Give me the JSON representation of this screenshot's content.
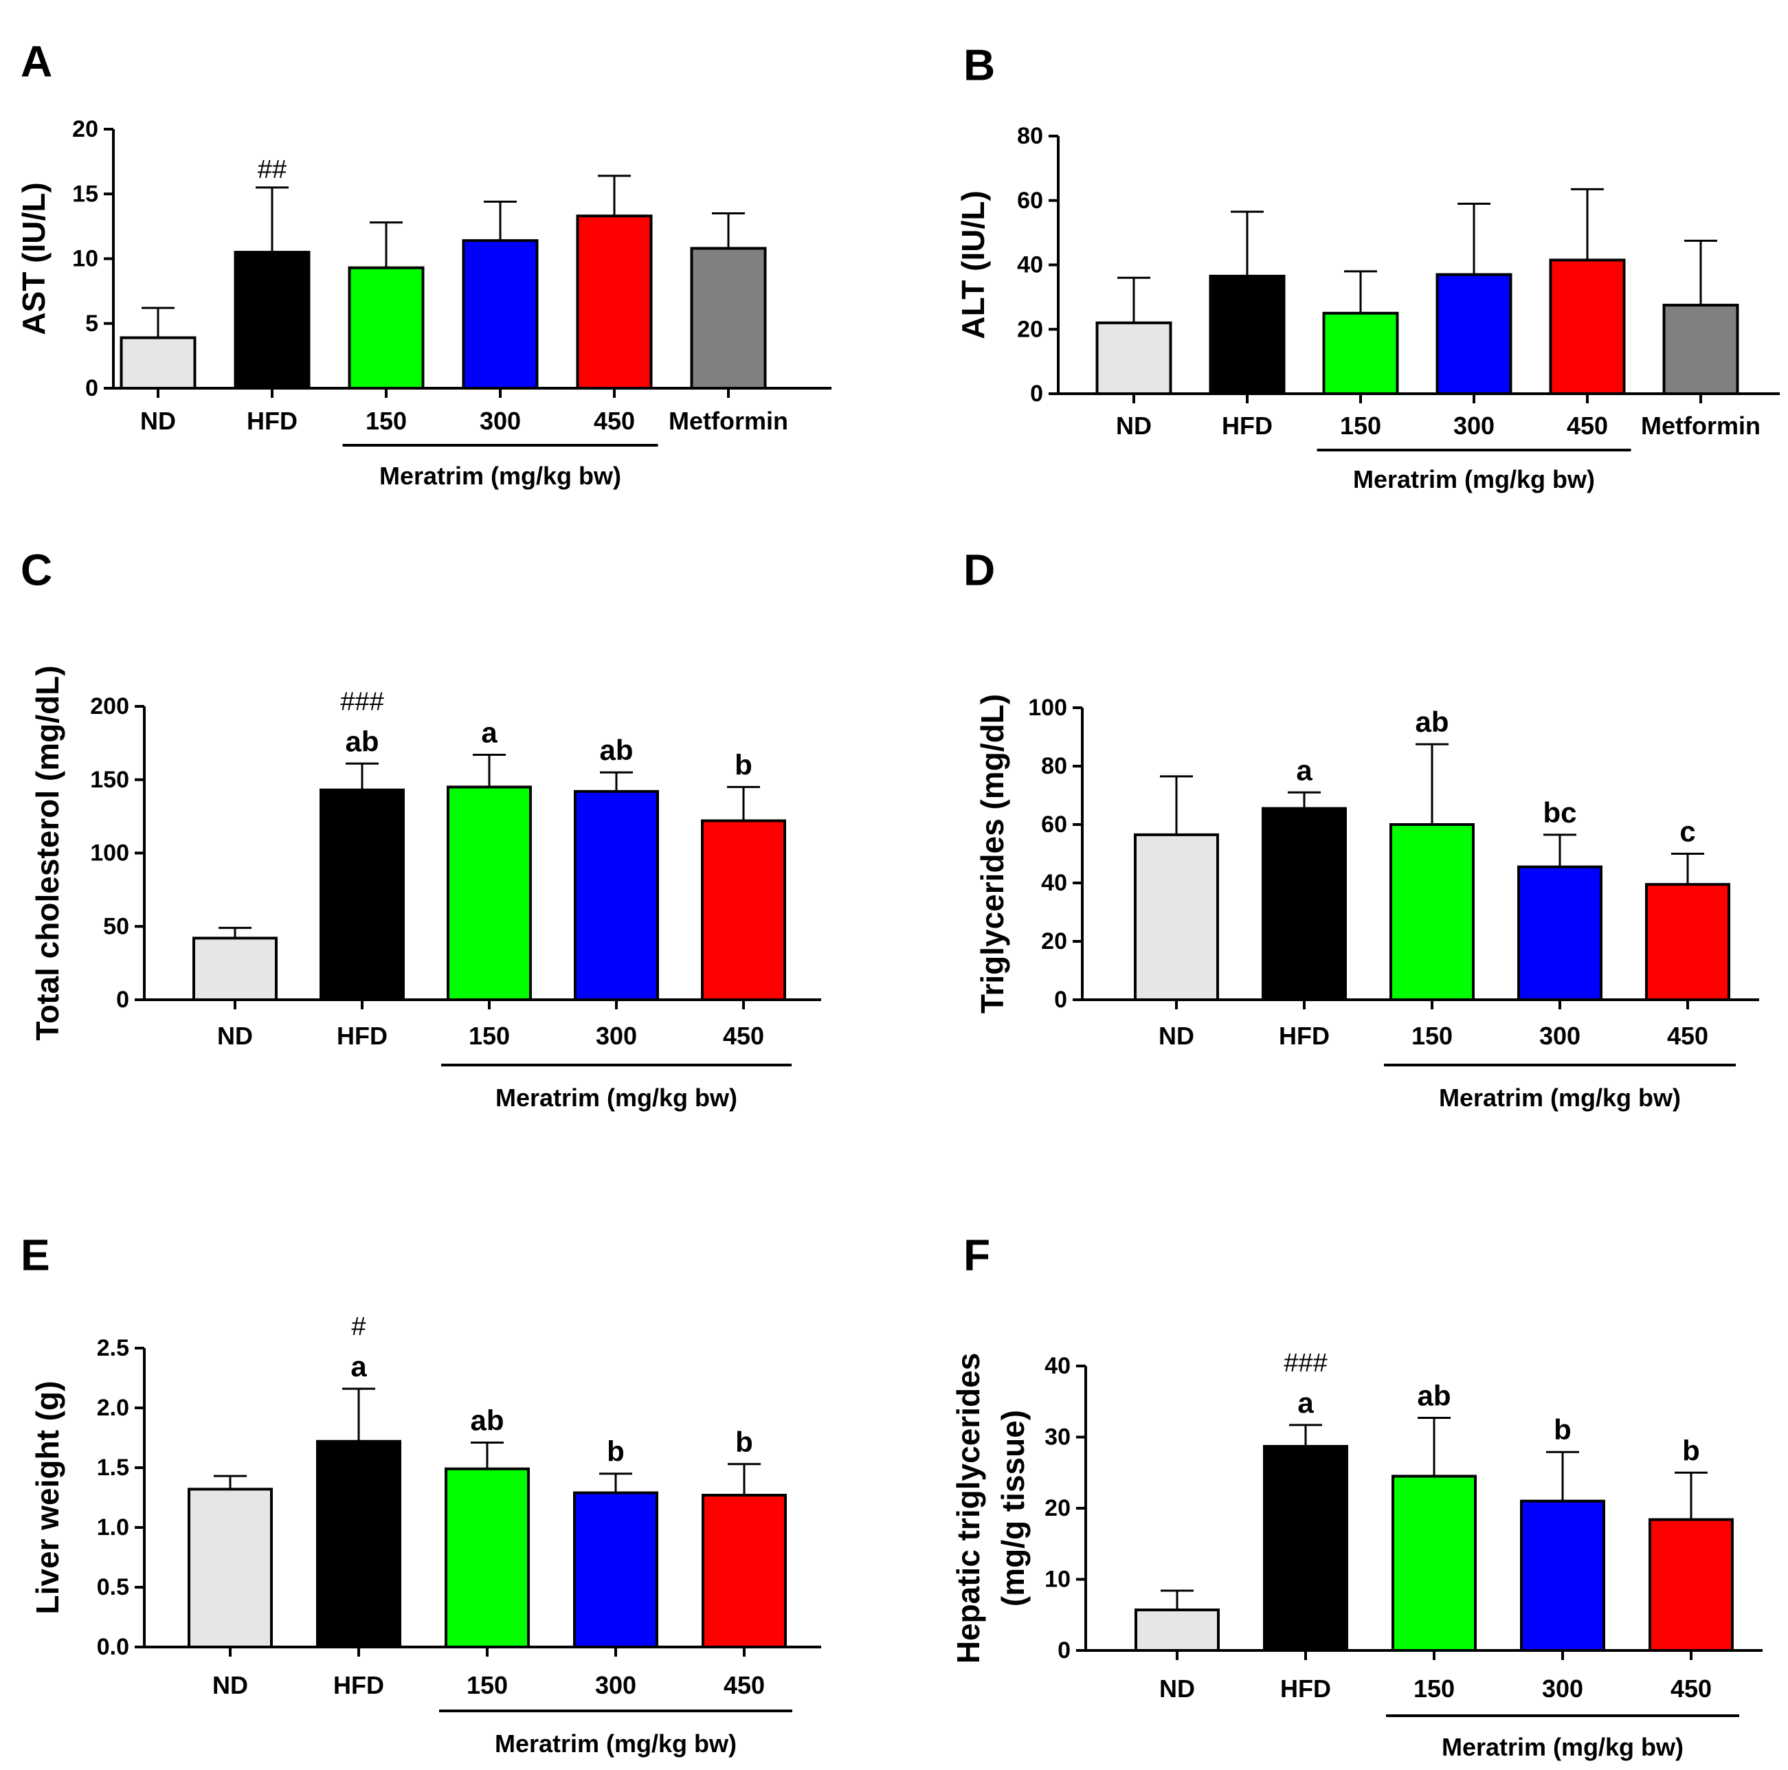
{
  "group_label": "Meratrim (mg/kg bw)",
  "colors": [
    "#e6e6e6",
    "#000000",
    "#00ff00",
    "#0000ff",
    "#ff0000",
    "#808080"
  ],
  "chart_data": [
    {
      "panel": "A",
      "type": "bar",
      "ylabel": "AST (IU/L)",
      "ylim": [
        0,
        20
      ],
      "yticks": [
        "0",
        "5",
        "10",
        "15",
        "20"
      ],
      "categories": [
        "ND",
        "HFD",
        "150",
        "300",
        "450",
        "Metformin"
      ],
      "values": [
        3.9,
        10.5,
        9.3,
        11.4,
        13.3,
        10.8
      ],
      "errors": [
        2.3,
        5.0,
        3.5,
        3.0,
        3.1,
        2.7
      ],
      "annotations": [
        "",
        "",
        "",
        "",
        "",
        ""
      ],
      "hash": [
        "",
        "##",
        "",
        "",
        "",
        ""
      ]
    },
    {
      "panel": "B",
      "type": "bar",
      "ylabel": "ALT (IU/L)",
      "ylim": [
        0,
        80
      ],
      "yticks": [
        "0",
        "20",
        "40",
        "60",
        "80"
      ],
      "categories": [
        "ND",
        "HFD",
        "150",
        "300",
        "450",
        "Metformin"
      ],
      "values": [
        22.0,
        36.5,
        25.0,
        37.0,
        41.5,
        27.5
      ],
      "errors": [
        14.0,
        20.0,
        13.0,
        22.0,
        22.0,
        20.0
      ],
      "annotations": [
        "",
        "",
        "",
        "",
        "",
        ""
      ],
      "hash": [
        "",
        "",
        "",
        "",
        "",
        ""
      ]
    },
    {
      "panel": "C",
      "type": "bar",
      "ylabel": "Total cholesterol (mg/dL)",
      "ylim": [
        0,
        200
      ],
      "yticks": [
        "0",
        "50",
        "100",
        "150",
        "200"
      ],
      "categories": [
        "ND",
        "HFD",
        "150",
        "300",
        "450"
      ],
      "values": [
        42,
        143,
        145,
        142,
        122
      ],
      "errors": [
        7,
        18,
        22,
        13,
        23
      ],
      "annotations": [
        "",
        "ab",
        "a",
        "ab",
        "b"
      ],
      "hash": [
        "",
        "###",
        "",
        "",
        ""
      ]
    },
    {
      "panel": "D",
      "type": "bar",
      "ylabel": "Triglycerides (mg/dL)",
      "ylim": [
        0,
        100
      ],
      "yticks": [
        "0",
        "20",
        "40",
        "60",
        "80",
        "100"
      ],
      "categories": [
        "ND",
        "HFD",
        "150",
        "300",
        "450"
      ],
      "values": [
        56.5,
        65.5,
        60.0,
        45.5,
        39.5
      ],
      "errors": [
        20.0,
        5.5,
        27.5,
        11.0,
        10.5
      ],
      "annotations": [
        "",
        "a",
        "ab",
        "bc",
        "c"
      ],
      "hash": [
        "",
        "",
        "",
        "",
        ""
      ]
    },
    {
      "panel": "E",
      "type": "bar",
      "ylabel": "Liver weight (g)",
      "ylim": [
        0,
        2.5
      ],
      "yticks": [
        "0.0",
        "0.5",
        "1.0",
        "1.5",
        "2.0",
        "2.5"
      ],
      "categories": [
        "ND",
        "HFD",
        "150",
        "300",
        "450"
      ],
      "values": [
        1.32,
        1.72,
        1.49,
        1.29,
        1.27
      ],
      "errors": [
        0.11,
        0.44,
        0.22,
        0.16,
        0.26
      ],
      "annotations": [
        "",
        "a",
        "ab",
        "b",
        "b"
      ],
      "hash": [
        "",
        "#",
        "",
        "",
        ""
      ]
    },
    {
      "panel": "F",
      "type": "bar",
      "ylabel": "Hepatic triglycerides",
      "ylabel2": "(mg/g tissue)",
      "ylim": [
        0,
        40
      ],
      "yticks": [
        "0",
        "10",
        "20",
        "30",
        "40"
      ],
      "categories": [
        "ND",
        "HFD",
        "150",
        "300",
        "450"
      ],
      "values": [
        5.7,
        28.7,
        24.5,
        21.0,
        18.4
      ],
      "errors": [
        2.7,
        3.0,
        8.2,
        6.9,
        6.6
      ],
      "annotations": [
        "",
        "a",
        "ab",
        "b",
        "b"
      ],
      "hash": [
        "",
        "###",
        "",
        "",
        ""
      ]
    }
  ]
}
